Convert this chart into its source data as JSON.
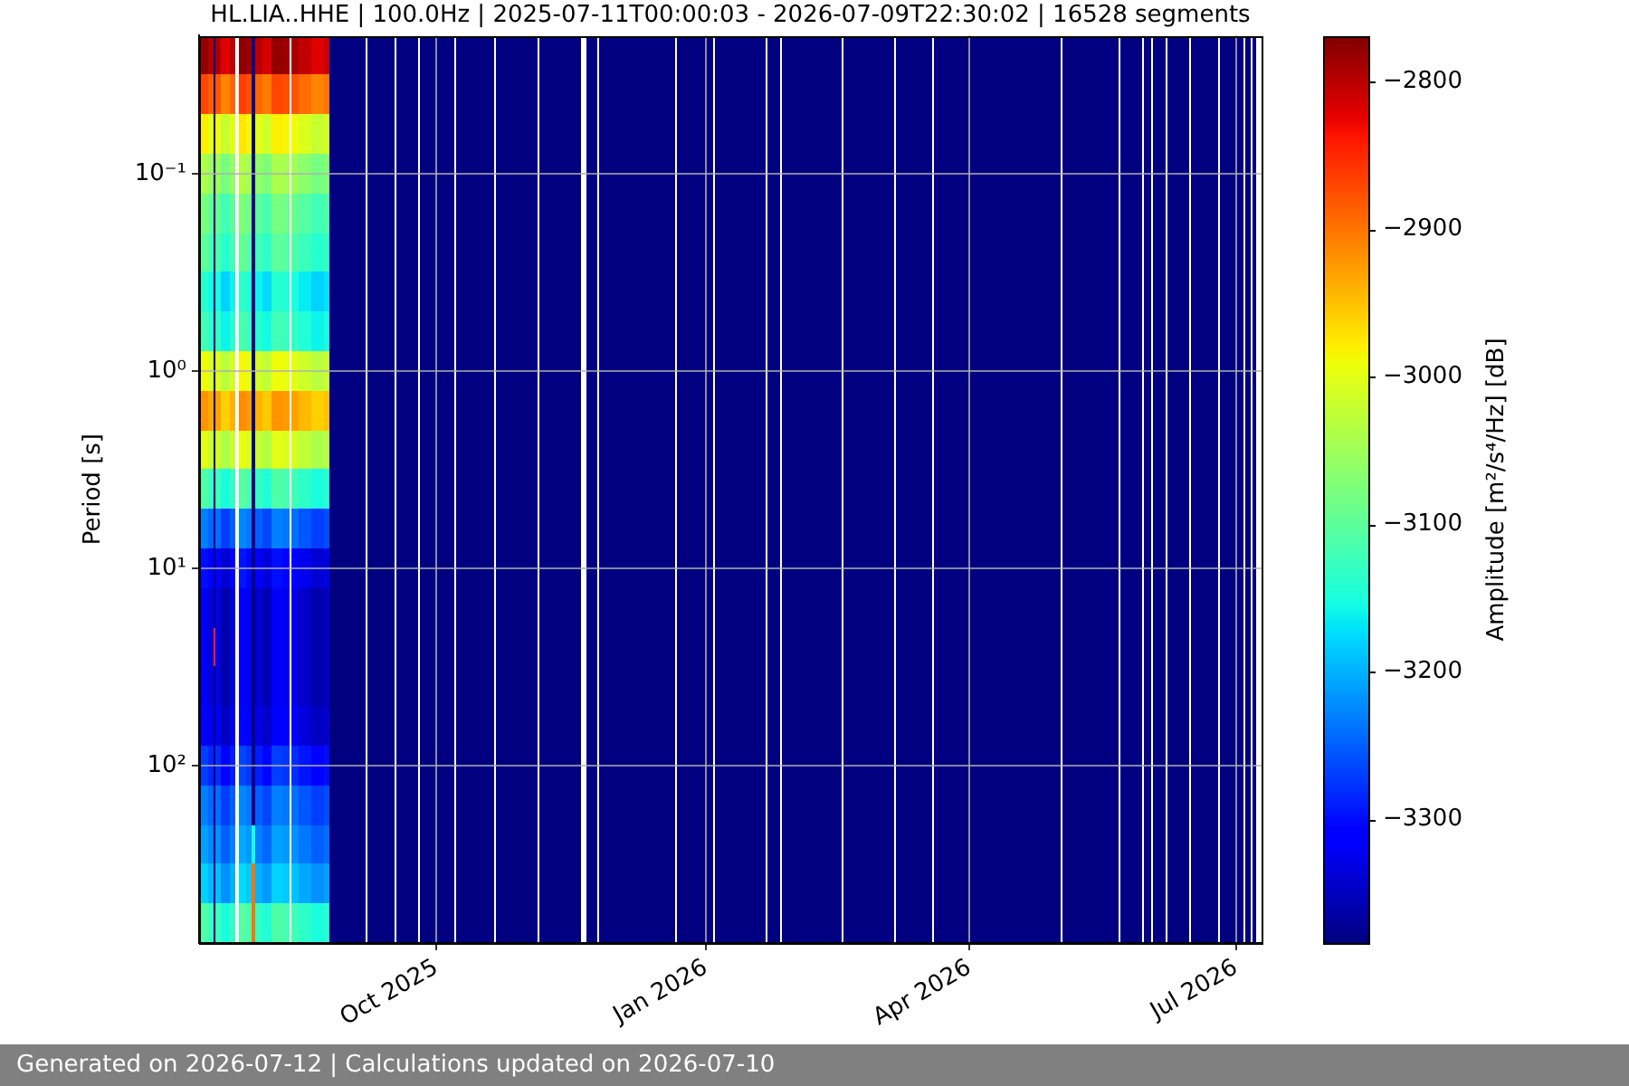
{
  "chart_data": {
    "type": "heatmap",
    "title": "HL.LIA..HHE | 100.0Hz | 2025-07-11T00:00:03 - 2026-07-09T22:30:02 | 16528 segments",
    "ylabel": "Period [s]",
    "clabel": "Amplitude [m²/s⁴/Hz] [dB]",
    "annotations": [
      "Generated on 2026-07-12 | Calculations updated on 2026-07-10"
    ],
    "x": [
      "2025-07-13T12:00",
      "2025-07-16T06:00",
      "2025-07-17T06:00",
      "2025-07-18T06:00",
      "2025-07-21T00:00",
      "2025-07-24T02:00",
      "2025-07-25T02:00",
      "2025-07-26T02:00",
      "2025-07-29T16:00",
      "2025-07-30T16:00",
      "2025-07-31T16:00",
      "2025-08-04T00:00",
      "2025-08-08T00:00",
      "2025-08-11T05:00",
      "2025-08-12T05:00",
      "2025-08-13T05:00",
      "2025-08-17T00:00",
      "2025-08-21T12:00",
      "2025-08-25T04:00",
      "2025-08-26T09:00",
      "2025-09-06T14:00",
      "2025-09-07T04:00",
      "2025-09-07T18:00",
      "2025-09-16T15:00",
      "2025-09-17T06:00",
      "2025-09-17T20:00",
      "2025-09-24T08:00",
      "2025-09-24T23:00",
      "2025-09-25T13:00",
      "2025-10-07T02:00",
      "2025-10-07T16:00",
      "2025-10-08T06:00",
      "2025-10-20T11:00",
      "2025-10-21T01:00",
      "2025-10-21T16:00",
      "2025-11-04T07:00",
      "2025-11-04T21:00",
      "2025-11-05T12:00",
      "2025-11-18T19:00",
      "2025-11-20T11:00",
      "2025-11-22T03:00",
      "2025-11-24T23:00",
      "2025-11-25T13:00",
      "2025-11-26T04:00",
      "2025-12-21T03:00",
      "2025-12-21T18:00",
      "2025-12-22T08:00",
      "2026-01-03T02:00",
      "2026-01-03T17:00",
      "2026-01-04T07:00",
      "2026-01-21T01:00",
      "2026-01-21T16:00",
      "2026-01-22T06:00",
      "2026-01-25T21:00",
      "2026-01-26T11:00",
      "2026-01-27T02:00",
      "2026-02-16T04:00",
      "2026-02-16T18:00",
      "2026-02-17T09:00",
      "2026-03-05T23:00",
      "2026-03-06T13:00",
      "2026-03-07T03:00",
      "2026-03-18T20:00",
      "2026-03-19T11:00",
      "2026-03-20T01:00",
      "2026-05-02T00:00",
      "2026-05-02T14:00",
      "2026-05-03T04:00",
      "2026-05-21T19:00",
      "2026-05-22T10:00",
      "2026-05-23T00:00",
      "2026-05-29T14:00",
      "2026-05-30T04:00",
      "2026-05-30T18:00",
      "2026-06-01T16:00",
      "2026-06-02T06:00",
      "2026-06-02T21:00",
      "2026-06-06T22:00",
      "2026-06-07T12:00",
      "2026-06-08T03:00",
      "2026-06-14T15:00",
      "2026-06-15T05:00",
      "2026-06-15T20:00",
      "2026-06-24T21:00",
      "2026-06-25T11:00",
      "2026-06-26T02:00",
      "2026-07-03T00:00",
      "2026-07-03T15:00",
      "2026-07-04T05:00",
      "2026-07-05T13:00",
      "2026-07-06T04:00",
      "2026-07-06T18:00",
      "2026-07-08T21:00"
    ],
    "y_categories": [
      null,
      null,
      null,
      "10⁻¹",
      null,
      null,
      null,
      null,
      "10⁰",
      null,
      null,
      null,
      null,
      "10¹",
      null,
      null,
      null,
      null,
      "10²",
      null,
      null,
      null,
      null
    ],
    "cells": [
      [
        -2780,
        -2795,
        -3384,
        -2790,
        -2820,
        -2800,
        null,
        -2775,
        -2785,
        -3384,
        -2800,
        -2815,
        -2780,
        -2785,
        null,
        -2790,
        -2805,
        -2820,
        -2810,
        -3384,
        -3384,
        null,
        -3384,
        -3384,
        null,
        -3384,
        -3384,
        null,
        -3384,
        -3384,
        null,
        -3384,
        -3384,
        null,
        -3384,
        -3384,
        null,
        -3384,
        -3384,
        null,
        -3384,
        -3384,
        null,
        -3384,
        -3384,
        null,
        -3384,
        -3384,
        null,
        -3384,
        -3384,
        null,
        -3384,
        -3384,
        null,
        -3384,
        -3384,
        null,
        -3384,
        -3384,
        null,
        -3384,
        -3384,
        null,
        -3384,
        -3384,
        null,
        -3384,
        -3384,
        null,
        -3384,
        -3384,
        null,
        -3384,
        -3384,
        null,
        -3384,
        -3384,
        null,
        -3384,
        -3384,
        null,
        -3384,
        -3384,
        null,
        -3384,
        -3384,
        null,
        -3384,
        -3384,
        null,
        -3384,
        null
      ],
      [
        -2870,
        -2885,
        -3384,
        -2880,
        -2910,
        -2890,
        null,
        -2865,
        -2875,
        -3384,
        -2890,
        -2905,
        -2870,
        -2875,
        null,
        -2880,
        -2895,
        -2910,
        -2900,
        -3384,
        -3384,
        null,
        -3384,
        -3384,
        null,
        -3384,
        -3384,
        null,
        -3384,
        -3384,
        null,
        -3384,
        -3384,
        null,
        -3384,
        -3384,
        null,
        -3384,
        -3384,
        null,
        -3384,
        -3384,
        null,
        -3384,
        -3384,
        null,
        -3384,
        -3384,
        null,
        -3384,
        -3384,
        null,
        -3384,
        -3384,
        null,
        -3384,
        -3384,
        null,
        -3384,
        -3384,
        null,
        -3384,
        -3384,
        null,
        -3384,
        -3384,
        null,
        -3384,
        -3384,
        null,
        -3384,
        -3384,
        null,
        -3384,
        -3384,
        null,
        -3384,
        -3384,
        null,
        -3384,
        -3384,
        null,
        -3384,
        -3384,
        null,
        -3384,
        -3384,
        null,
        -3384,
        -3384,
        null,
        -3384,
        null
      ],
      [
        -2980,
        -2995,
        -3384,
        -2990,
        -3020,
        -3000,
        null,
        -2975,
        -2985,
        -3384,
        -3000,
        -3015,
        -2980,
        -2985,
        null,
        -2990,
        -3005,
        -3020,
        -3010,
        -3384,
        -3384,
        null,
        -3384,
        -3384,
        null,
        -3384,
        -3384,
        null,
        -3384,
        -3384,
        null,
        -3384,
        -3384,
        null,
        -3384,
        -3384,
        null,
        -3384,
        -3384,
        null,
        -3384,
        -3384,
        null,
        -3384,
        -3384,
        null,
        -3384,
        -3384,
        null,
        -3384,
        -3384,
        null,
        -3384,
        -3384,
        null,
        -3384,
        -3384,
        null,
        -3384,
        -3384,
        null,
        -3384,
        -3384,
        null,
        -3384,
        -3384,
        null,
        -3384,
        -3384,
        null,
        -3384,
        -3384,
        null,
        -3384,
        -3384,
        null,
        -3384,
        -3384,
        null,
        -3384,
        -3384,
        null,
        -3384,
        -3384,
        null,
        -3384,
        -3384,
        null,
        -3384,
        -3384,
        null,
        -3384,
        null
      ],
      [
        -3040,
        -3055,
        -3384,
        -3050,
        -3080,
        -3060,
        null,
        -3035,
        -3045,
        -3384,
        -3060,
        -3075,
        -3040,
        -3045,
        null,
        -3050,
        -3065,
        -3080,
        -3070,
        -3384,
        -3384,
        null,
        -3384,
        -3384,
        null,
        -3384,
        -3384,
        null,
        -3384,
        -3384,
        null,
        -3384,
        -3384,
        null,
        -3384,
        -3384,
        null,
        -3384,
        -3384,
        null,
        -3384,
        -3384,
        null,
        -3384,
        -3384,
        null,
        -3384,
        -3384,
        null,
        -3384,
        -3384,
        null,
        -3384,
        -3384,
        null,
        -3384,
        -3384,
        null,
        -3384,
        -3384,
        null,
        -3384,
        -3384,
        null,
        -3384,
        -3384,
        null,
        -3384,
        -3384,
        null,
        -3384,
        -3384,
        null,
        -3384,
        -3384,
        null,
        -3384,
        -3384,
        null,
        -3384,
        -3384,
        null,
        -3384,
        -3384,
        null,
        -3384,
        -3384,
        null,
        -3384,
        -3384,
        null,
        -3384,
        null
      ],
      [
        -3080,
        -3095,
        -3384,
        -3090,
        -3120,
        -3100,
        null,
        -3075,
        -3085,
        -3384,
        -3100,
        -3115,
        -3080,
        -3085,
        null,
        -3090,
        -3105,
        -3120,
        -3110,
        -3384,
        -3384,
        null,
        -3384,
        -3384,
        null,
        -3384,
        -3384,
        null,
        -3384,
        -3384,
        null,
        -3384,
        -3384,
        null,
        -3384,
        -3384,
        null,
        -3384,
        -3384,
        null,
        -3384,
        -3384,
        null,
        -3384,
        -3384,
        null,
        -3384,
        -3384,
        null,
        -3384,
        -3384,
        null,
        -3384,
        -3384,
        null,
        -3384,
        -3384,
        null,
        -3384,
        -3384,
        null,
        -3384,
        -3384,
        null,
        -3384,
        -3384,
        null,
        -3384,
        -3384,
        null,
        -3384,
        -3384,
        null,
        -3384,
        -3384,
        null,
        -3384,
        -3384,
        null,
        -3384,
        -3384,
        null,
        -3384,
        -3384,
        null,
        -3384,
        -3384,
        null,
        -3384,
        -3384,
        null,
        -3384,
        null
      ],
      [
        -3100,
        -3115,
        -3384,
        -3110,
        -3140,
        -3120,
        null,
        -3095,
        -3105,
        -3384,
        -3120,
        -3135,
        -3100,
        -3105,
        null,
        -3110,
        -3125,
        -3140,
        -3130,
        -3384,
        -3384,
        null,
        -3384,
        -3384,
        null,
        -3384,
        -3384,
        null,
        -3384,
        -3384,
        null,
        -3384,
        -3384,
        null,
        -3384,
        -3384,
        null,
        -3384,
        -3384,
        null,
        -3384,
        -3384,
        null,
        -3384,
        -3384,
        null,
        -3384,
        -3384,
        null,
        -3384,
        -3384,
        null,
        -3384,
        -3384,
        null,
        -3384,
        -3384,
        null,
        -3384,
        -3384,
        null,
        -3384,
        -3384,
        null,
        -3384,
        -3384,
        null,
        -3384,
        -3384,
        null,
        -3384,
        -3384,
        null,
        -3384,
        -3384,
        null,
        -3384,
        -3384,
        null,
        -3384,
        -3384,
        null,
        -3384,
        -3384,
        null,
        -3384,
        -3384,
        null,
        -3384,
        -3384,
        null,
        -3384,
        null
      ],
      [
        -3140,
        -3155,
        -3384,
        -3150,
        -3180,
        -3160,
        null,
        -3135,
        -3145,
        -3384,
        -3160,
        -3175,
        -3140,
        -3145,
        null,
        -3150,
        -3165,
        -3180,
        -3170,
        -3384,
        -3384,
        null,
        -3384,
        -3384,
        null,
        -3384,
        -3384,
        null,
        -3384,
        -3384,
        null,
        -3384,
        -3384,
        null,
        -3384,
        -3384,
        null,
        -3384,
        -3384,
        null,
        -3384,
        -3384,
        null,
        -3384,
        -3384,
        null,
        -3384,
        -3384,
        null,
        -3384,
        -3384,
        null,
        -3384,
        -3384,
        null,
        -3384,
        -3384,
        null,
        -3384,
        -3384,
        null,
        -3384,
        -3384,
        null,
        -3384,
        -3384,
        null,
        -3384,
        -3384,
        null,
        -3384,
        -3384,
        null,
        -3384,
        -3384,
        null,
        -3384,
        -3384,
        null,
        -3384,
        -3384,
        null,
        -3384,
        -3384,
        null,
        -3384,
        -3384,
        null,
        -3384,
        -3384,
        null,
        -3384,
        null
      ],
      [
        -3120,
        -3135,
        -3384,
        -3130,
        -3160,
        -3140,
        null,
        -3115,
        -3125,
        -3384,
        -3140,
        -3155,
        -3120,
        -3125,
        null,
        -3130,
        -3145,
        -3160,
        -3150,
        -3384,
        -3384,
        null,
        -3384,
        -3384,
        null,
        -3384,
        -3384,
        null,
        -3384,
        -3384,
        null,
        -3384,
        -3384,
        null,
        -3384,
        -3384,
        null,
        -3384,
        -3384,
        null,
        -3384,
        -3384,
        null,
        -3384,
        -3384,
        null,
        -3384,
        -3384,
        null,
        -3384,
        -3384,
        null,
        -3384,
        -3384,
        null,
        -3384,
        -3384,
        null,
        -3384,
        -3384,
        null,
        -3384,
        -3384,
        null,
        -3384,
        -3384,
        null,
        -3384,
        -3384,
        null,
        -3384,
        -3384,
        null,
        -3384,
        -3384,
        null,
        -3384,
        -3384,
        null,
        -3384,
        -3384,
        null,
        -3384,
        -3384,
        null,
        -3384,
        -3384,
        null,
        -3384,
        -3384,
        null,
        -3384,
        null
      ],
      [
        -2990,
        -3005,
        -3384,
        -3000,
        -3030,
        -3010,
        null,
        -2985,
        -2995,
        -3384,
        -3010,
        -3025,
        -2990,
        -2995,
        null,
        -3000,
        -3015,
        -3030,
        -3020,
        -3384,
        -3384,
        null,
        -3384,
        -3384,
        null,
        -3384,
        -3384,
        null,
        -3384,
        -3384,
        null,
        -3384,
        -3384,
        null,
        -3384,
        -3384,
        null,
        -3384,
        -3384,
        null,
        -3384,
        -3384,
        null,
        -3384,
        -3384,
        null,
        -3384,
        -3384,
        null,
        -3384,
        -3384,
        null,
        -3384,
        -3384,
        null,
        -3384,
        -3384,
        null,
        -3384,
        -3384,
        null,
        -3384,
        -3384,
        null,
        -3384,
        -3384,
        null,
        -3384,
        -3384,
        null,
        -3384,
        -3384,
        null,
        -3384,
        -3384,
        null,
        -3384,
        -3384,
        null,
        -3384,
        -3384,
        null,
        -3384,
        -3384,
        null,
        -3384,
        -3384,
        null,
        -3384,
        -3384,
        null,
        -3384,
        null
      ],
      [
        -2920,
        -2935,
        -3384,
        -2930,
        -2960,
        -2940,
        null,
        -2915,
        -2925,
        -3384,
        -2940,
        -2955,
        -2920,
        -2925,
        null,
        -2930,
        -2945,
        -2960,
        -2950,
        -3384,
        -3384,
        null,
        -3384,
        -3384,
        null,
        -3384,
        -3384,
        null,
        -3384,
        -3384,
        null,
        -3384,
        -3384,
        null,
        -3384,
        -3384,
        null,
        -3384,
        -3384,
        null,
        -3384,
        -3384,
        null,
        -3384,
        -3384,
        null,
        -3384,
        -3384,
        null,
        -3384,
        -3384,
        null,
        -3384,
        -3384,
        null,
        -3384,
        -3384,
        null,
        -3384,
        -3384,
        null,
        -3384,
        -3384,
        null,
        -3384,
        -3384,
        null,
        -3384,
        -3384,
        null,
        -3384,
        -3384,
        null,
        -3384,
        -3384,
        null,
        -3384,
        -3384,
        null,
        -3384,
        -3384,
        null,
        -3384,
        -3384,
        null,
        -3384,
        -3384,
        null,
        -3384,
        -3384,
        null,
        -3384,
        null
      ],
      [
        -3000,
        -3015,
        -3384,
        -3010,
        -3040,
        -3020,
        null,
        -2995,
        -3005,
        -3384,
        -3020,
        -3035,
        -3000,
        -3005,
        null,
        -3010,
        -3025,
        -3040,
        -3030,
        -3384,
        -3384,
        null,
        -3384,
        -3384,
        null,
        -3384,
        -3384,
        null,
        -3384,
        -3384,
        null,
        -3384,
        -3384,
        null,
        -3384,
        -3384,
        null,
        -3384,
        -3384,
        null,
        -3384,
        -3384,
        null,
        -3384,
        -3384,
        null,
        -3384,
        -3384,
        null,
        -3384,
        -3384,
        null,
        -3384,
        -3384,
        null,
        -3384,
        -3384,
        null,
        -3384,
        -3384,
        null,
        -3384,
        -3384,
        null,
        -3384,
        -3384,
        null,
        -3384,
        -3384,
        null,
        -3384,
        -3384,
        null,
        -3384,
        -3384,
        null,
        -3384,
        -3384,
        null,
        -3384,
        -3384,
        null,
        -3384,
        -3384,
        null,
        -3384,
        -3384,
        null,
        -3384,
        -3384,
        null,
        -3384,
        null
      ],
      [
        -3110,
        -3125,
        -3384,
        -3120,
        -3150,
        -3130,
        null,
        -3105,
        -3115,
        -3384,
        -3130,
        -3145,
        -3110,
        -3115,
        null,
        -3120,
        -3135,
        -3150,
        -3140,
        -3384,
        -3384,
        null,
        -3384,
        -3384,
        null,
        -3384,
        -3384,
        null,
        -3384,
        -3384,
        null,
        -3384,
        -3384,
        null,
        -3384,
        -3384,
        null,
        -3384,
        -3384,
        null,
        -3384,
        -3384,
        null,
        -3384,
        -3384,
        null,
        -3384,
        -3384,
        null,
        -3384,
        -3384,
        null,
        -3384,
        -3384,
        null,
        -3384,
        -3384,
        null,
        -3384,
        -3384,
        null,
        -3384,
        -3384,
        null,
        -3384,
        -3384,
        null,
        -3384,
        -3384,
        null,
        -3384,
        -3384,
        null,
        -3384,
        -3384,
        null,
        -3384,
        -3384,
        null,
        -3384,
        -3384,
        null,
        -3384,
        -3384,
        null,
        -3384,
        -3384,
        null,
        -3384,
        -3384,
        null,
        -3384,
        null
      ],
      [
        -3230,
        -3245,
        -3384,
        -3240,
        -3270,
        -3250,
        null,
        -3225,
        -3235,
        -3384,
        -3250,
        -3265,
        -3230,
        -3235,
        null,
        -3240,
        -3255,
        -3270,
        -3260,
        -3384,
        -3384,
        null,
        -3384,
        -3384,
        null,
        -3384,
        -3384,
        null,
        -3384,
        -3384,
        null,
        -3384,
        -3384,
        null,
        -3384,
        -3384,
        null,
        -3384,
        -3384,
        null,
        -3384,
        -3384,
        null,
        -3384,
        -3384,
        null,
        -3384,
        -3384,
        null,
        -3384,
        -3384,
        null,
        -3384,
        -3384,
        null,
        -3384,
        -3384,
        null,
        -3384,
        -3384,
        null,
        -3384,
        -3384,
        null,
        -3384,
        -3384,
        null,
        -3384,
        -3384,
        null,
        -3384,
        -3384,
        null,
        -3384,
        -3384,
        null,
        -3384,
        -3384,
        null,
        -3384,
        -3384,
        null,
        -3384,
        -3384,
        null,
        -3384,
        -3384,
        null,
        -3384,
        -3384,
        null,
        -3384,
        null
      ],
      [
        -3300,
        -3315,
        -3384,
        -3310,
        -3340,
        -3320,
        null,
        -3295,
        -3305,
        -3384,
        -3320,
        -3335,
        -3300,
        -3305,
        null,
        -3310,
        -3325,
        -3340,
        -3330,
        -3384,
        -3384,
        null,
        -3384,
        -3384,
        null,
        -3384,
        -3384,
        null,
        -3384,
        -3384,
        null,
        -3384,
        -3384,
        null,
        -3384,
        -3384,
        null,
        -3384,
        -3384,
        null,
        -3384,
        -3384,
        null,
        -3384,
        -3384,
        null,
        -3384,
        -3384,
        null,
        -3384,
        -3384,
        null,
        -3384,
        -3384,
        null,
        -3384,
        -3384,
        null,
        -3384,
        -3384,
        null,
        -3384,
        -3384,
        null,
        -3384,
        -3384,
        null,
        -3384,
        -3384,
        null,
        -3384,
        -3384,
        null,
        -3384,
        -3384,
        null,
        -3384,
        -3384,
        null,
        -3384,
        -3384,
        null,
        -3384,
        -3384,
        null,
        -3384,
        -3384,
        null,
        -3384,
        -3384,
        null,
        -3384,
        null
      ],
      [
        -3320,
        -3335,
        -3384,
        -3330,
        -3360,
        -3340,
        null,
        -3315,
        -3325,
        -3384,
        -3340,
        -3355,
        -3320,
        -3325,
        null,
        -3330,
        -3345,
        -3360,
        -3350,
        -3384,
        -3384,
        null,
        -3384,
        -3384,
        null,
        -3384,
        -3384,
        null,
        -3384,
        -3384,
        null,
        -3384,
        -3384,
        null,
        -3384,
        -3384,
        null,
        -3384,
        -3384,
        null,
        -3384,
        -3384,
        null,
        -3384,
        -3384,
        null,
        -3384,
        -3384,
        null,
        -3384,
        -3384,
        null,
        -3384,
        -3384,
        null,
        -3384,
        -3384,
        null,
        -3384,
        -3384,
        null,
        -3384,
        -3384,
        null,
        -3384,
        -3384,
        null,
        -3384,
        -3384,
        null,
        -3384,
        -3384,
        null,
        -3384,
        -3384,
        null,
        -3384,
        -3384,
        null,
        -3384,
        -3384,
        null,
        -3384,
        -3384,
        null,
        -3384,
        -3384,
        null,
        -3384,
        -3384,
        null,
        -3384,
        null
      ],
      [
        -3320,
        -3335,
        -2850,
        -3330,
        -3360,
        -3340,
        null,
        -3315,
        -3325,
        -3384,
        -3340,
        -3355,
        -3320,
        -3325,
        null,
        -3330,
        -3345,
        -3360,
        -3350,
        -3384,
        -3384,
        null,
        -3384,
        -3384,
        null,
        -3384,
        -3384,
        null,
        -3384,
        -3384,
        null,
        -3384,
        -3384,
        null,
        -3384,
        -3384,
        null,
        -3384,
        -3384,
        null,
        -3384,
        -3384,
        null,
        -3384,
        -3384,
        null,
        -3384,
        -3384,
        null,
        -3384,
        -3384,
        null,
        -3384,
        -3384,
        null,
        -3384,
        -3384,
        null,
        -3384,
        -3384,
        null,
        -3384,
        -3384,
        null,
        -3384,
        -3384,
        null,
        -3384,
        -3384,
        null,
        -3384,
        -3384,
        null,
        -3384,
        -3384,
        null,
        -3384,
        -3384,
        null,
        -3384,
        -3384,
        null,
        -3384,
        -3384,
        null,
        -3384,
        -3384,
        null,
        -3384,
        -3384,
        null,
        -3384,
        null
      ],
      [
        -3320,
        -3335,
        -3384,
        -3330,
        -3360,
        -3340,
        null,
        -3315,
        -3325,
        -3384,
        -3340,
        -3355,
        -3320,
        -3325,
        null,
        -3330,
        -3345,
        -3360,
        -3350,
        -3384,
        -3384,
        null,
        -3384,
        -3384,
        null,
        -3384,
        -3384,
        null,
        -3384,
        -3384,
        null,
        -3384,
        -3384,
        null,
        -3384,
        -3384,
        null,
        -3384,
        -3384,
        null,
        -3384,
        -3384,
        null,
        -3384,
        -3384,
        null,
        -3384,
        -3384,
        null,
        -3384,
        -3384,
        null,
        -3384,
        -3384,
        null,
        -3384,
        -3384,
        null,
        -3384,
        -3384,
        null,
        -3384,
        -3384,
        null,
        -3384,
        -3384,
        null,
        -3384,
        -3384,
        null,
        -3384,
        -3384,
        null,
        -3384,
        -3384,
        null,
        -3384,
        -3384,
        null,
        -3384,
        -3384,
        null,
        -3384,
        -3384,
        null,
        -3384,
        -3384,
        null,
        -3384,
        -3384,
        null,
        -3384,
        null
      ],
      [
        -3310,
        -3325,
        -3384,
        -3320,
        -3350,
        -3330,
        null,
        -3305,
        -3315,
        -3384,
        -3330,
        -3345,
        -3310,
        -3315,
        null,
        -3320,
        -3335,
        -3350,
        -3340,
        -3384,
        -3384,
        null,
        -3384,
        -3384,
        null,
        -3384,
        -3384,
        null,
        -3384,
        -3384,
        null,
        -3384,
        -3384,
        null,
        -3384,
        -3384,
        null,
        -3384,
        -3384,
        null,
        -3384,
        -3384,
        null,
        -3384,
        -3384,
        null,
        -3384,
        -3384,
        null,
        -3384,
        -3384,
        null,
        -3384,
        -3384,
        null,
        -3384,
        -3384,
        null,
        -3384,
        -3384,
        null,
        -3384,
        -3384,
        null,
        -3384,
        -3384,
        null,
        -3384,
        -3384,
        null,
        -3384,
        -3384,
        null,
        -3384,
        -3384,
        null,
        -3384,
        -3384,
        null,
        -3384,
        -3384,
        null,
        -3384,
        -3384,
        null,
        -3384,
        -3384,
        null,
        -3384,
        -3384,
        null,
        -3384,
        null
      ],
      [
        -3270,
        -3285,
        -3384,
        -3280,
        -3310,
        -3290,
        null,
        -3265,
        -3275,
        -3384,
        -3290,
        -3305,
        -3270,
        -3275,
        null,
        -3280,
        -3295,
        -3310,
        -3300,
        -3384,
        -3384,
        null,
        -3384,
        -3384,
        null,
        -3384,
        -3384,
        null,
        -3384,
        -3384,
        null,
        -3384,
        -3384,
        null,
        -3384,
        -3384,
        null,
        -3384,
        -3384,
        null,
        -3384,
        -3384,
        null,
        -3384,
        -3384,
        null,
        -3384,
        -3384,
        null,
        -3384,
        -3384,
        null,
        -3384,
        -3384,
        null,
        -3384,
        -3384,
        null,
        -3384,
        -3384,
        null,
        -3384,
        -3384,
        null,
        -3384,
        -3384,
        null,
        -3384,
        -3384,
        null,
        -3384,
        -3384,
        null,
        -3384,
        -3384,
        null,
        -3384,
        -3384,
        null,
        -3384,
        -3384,
        null,
        -3384,
        -3384,
        null,
        -3384,
        -3384,
        null,
        -3384,
        -3384,
        null,
        -3384,
        null
      ],
      [
        -3230,
        -3245,
        -3384,
        -3240,
        -3270,
        -3250,
        null,
        -3225,
        -3235,
        -3384,
        -3250,
        -3265,
        -3230,
        -3235,
        null,
        -3240,
        -3255,
        -3270,
        -3260,
        -3384,
        -3384,
        null,
        -3384,
        -3384,
        null,
        -3384,
        -3384,
        null,
        -3384,
        -3384,
        null,
        -3384,
        -3384,
        null,
        -3384,
        -3384,
        null,
        -3384,
        -3384,
        null,
        -3384,
        -3384,
        null,
        -3384,
        -3384,
        null,
        -3384,
        -3384,
        null,
        -3384,
        -3384,
        null,
        -3384,
        -3384,
        null,
        -3384,
        -3384,
        null,
        -3384,
        -3384,
        null,
        -3384,
        -3384,
        null,
        -3384,
        -3384,
        null,
        -3384,
        -3384,
        null,
        -3384,
        -3384,
        null,
        -3384,
        -3384,
        null,
        -3384,
        -3384,
        null,
        -3384,
        -3384,
        null,
        -3384,
        -3384,
        null,
        -3384,
        -3384,
        null,
        -3384,
        -3384,
        null,
        -3384,
        null
      ],
      [
        -3210,
        -3225,
        -3384,
        -3220,
        -3250,
        -3230,
        null,
        -3205,
        -3215,
        -3150,
        -3230,
        -3245,
        -3210,
        -3215,
        null,
        -3220,
        -3235,
        -3250,
        -3240,
        -3384,
        -3384,
        null,
        -3384,
        -3384,
        null,
        -3384,
        -3384,
        null,
        -3384,
        -3384,
        null,
        -3384,
        -3384,
        null,
        -3384,
        -3384,
        null,
        -3384,
        -3384,
        null,
        -3384,
        -3384,
        null,
        -3384,
        -3384,
        null,
        -3384,
        -3384,
        null,
        -3384,
        -3384,
        null,
        -3384,
        -3384,
        null,
        -3384,
        -3384,
        null,
        -3384,
        -3384,
        null,
        -3384,
        -3384,
        null,
        -3384,
        -3384,
        null,
        -3384,
        -3384,
        null,
        -3384,
        -3384,
        null,
        -3384,
        -3384,
        null,
        -3384,
        -3384,
        null,
        -3384,
        -3384,
        null,
        -3384,
        -3384,
        null,
        -3384,
        -3384,
        null,
        -3384,
        -3384,
        null,
        -3384,
        null
      ],
      [
        -3180,
        -3195,
        -3384,
        -3190,
        -3220,
        -3200,
        null,
        -3175,
        -3185,
        -2900,
        -3200,
        -3215,
        -3180,
        -3185,
        null,
        -3190,
        -3205,
        -3220,
        -3210,
        -3384,
        -3384,
        null,
        -3384,
        -3384,
        null,
        -3384,
        -3384,
        null,
        -3384,
        -3384,
        null,
        -3384,
        -3384,
        null,
        -3384,
        -3384,
        null,
        -3384,
        -3384,
        null,
        -3384,
        -3384,
        null,
        -3384,
        -3384,
        null,
        -3384,
        -3384,
        null,
        -3384,
        -3384,
        null,
        -3384,
        -3384,
        null,
        -3384,
        -3384,
        null,
        -3384,
        -3384,
        null,
        -3384,
        -3384,
        null,
        -3384,
        -3384,
        null,
        -3384,
        -3384,
        null,
        -3384,
        -3384,
        null,
        -3384,
        -3384,
        null,
        -3384,
        -3384,
        null,
        -3384,
        -3384,
        null,
        -3384,
        -3384,
        null,
        -3384,
        -3384,
        null,
        -3384,
        -3384,
        null,
        -3384,
        null
      ],
      [
        -3110,
        -3125,
        -3384,
        -3120,
        -3150,
        -3130,
        null,
        -3105,
        -3115,
        -2900,
        -3130,
        -3145,
        -3110,
        -3115,
        null,
        -3120,
        -3135,
        -3150,
        -3140,
        -3384,
        -3384,
        null,
        -3384,
        -3384,
        null,
        -3384,
        -3384,
        null,
        -3384,
        -3384,
        null,
        -3384,
        -3384,
        null,
        -3384,
        -3384,
        null,
        -3384,
        -3384,
        null,
        -3384,
        -3384,
        null,
        -3384,
        -3384,
        null,
        -3384,
        -3384,
        null,
        -3384,
        -3384,
        null,
        -3384,
        -3384,
        null,
        -3384,
        -3384,
        null,
        -3384,
        -3384,
        null,
        -3384,
        -3384,
        null,
        -3384,
        -3384,
        null,
        -3384,
        -3384,
        null,
        -3384,
        -3384,
        null,
        -3384,
        -3384,
        null,
        -3384,
        -3384,
        null,
        -3384,
        -3384,
        null,
        -3384,
        -3384,
        null,
        -3384,
        -3384,
        null,
        -3384,
        -3384,
        null,
        -3384,
        null
      ]
    ],
    "clim": [
      -3384,
      -2769
    ],
    "cticks": [
      {
        "value": -2800,
        "label": "−2800"
      },
      {
        "value": -2900,
        "label": "−2900"
      },
      {
        "value": -3000,
        "label": "−3000"
      },
      {
        "value": -3100,
        "label": "−3100"
      },
      {
        "value": -3200,
        "label": "−3200"
      },
      {
        "value": -3300,
        "label": "−3300"
      }
    ],
    "xlim": [
      "2025-07-12",
      "2026-07-09T18:00"
    ],
    "xticks": [
      {
        "value": "2025-10-01",
        "label": "Oct 2025"
      },
      {
        "value": "2026-01-01",
        "label": "Jan 2026"
      },
      {
        "value": "2026-04-01",
        "label": "Apr 2026"
      },
      {
        "value": "2026-07-01",
        "label": "Jul 2026"
      }
    ],
    "grid": true
  }
}
